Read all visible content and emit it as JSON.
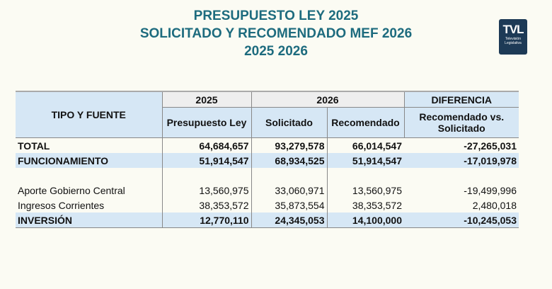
{
  "title": [
    "PRESUPUESTO LEY 2025",
    "SOLICITADO Y RECOMENDADO MEF 2026",
    "2025 2026"
  ],
  "logo": {
    "mark": "TVL",
    "line1": "Televisión",
    "line2": "Legislativa"
  },
  "table": {
    "header": {
      "tipo": "TIPO Y FUENTE",
      "y2025": "2025",
      "y2026": "2026",
      "dif": "DIFERENCIA",
      "presupuesto": "Presupuesto Ley",
      "solicitado": "Solicitado",
      "recomendado": "Recomendado",
      "dif_sub": "Recomendado vs. Solicitado"
    },
    "rows": [
      {
        "label": "TOTAL",
        "v": [
          "64,684,657",
          "93,279,578",
          "66,014,547",
          "-27,265,031"
        ]
      },
      {
        "label": "FUNCIONAMIENTO",
        "v": [
          "51,914,547",
          "68,934,525",
          "51,914,547",
          "-17,019,978"
        ]
      },
      {
        "label": "Aporte Gobierno Central",
        "v": [
          "13,560,975",
          "33,060,971",
          "13,560,975",
          "-19,499,996"
        ]
      },
      {
        "label": "Ingresos Corrientes",
        "v": [
          "38,353,572",
          "35,873,554",
          "38,353,572",
          "2,480,018"
        ]
      },
      {
        "label": "INVERSIÓN",
        "v": [
          "12,770,110",
          "24,345,053",
          "14,100,000",
          "-10,245,053"
        ]
      }
    ]
  }
}
